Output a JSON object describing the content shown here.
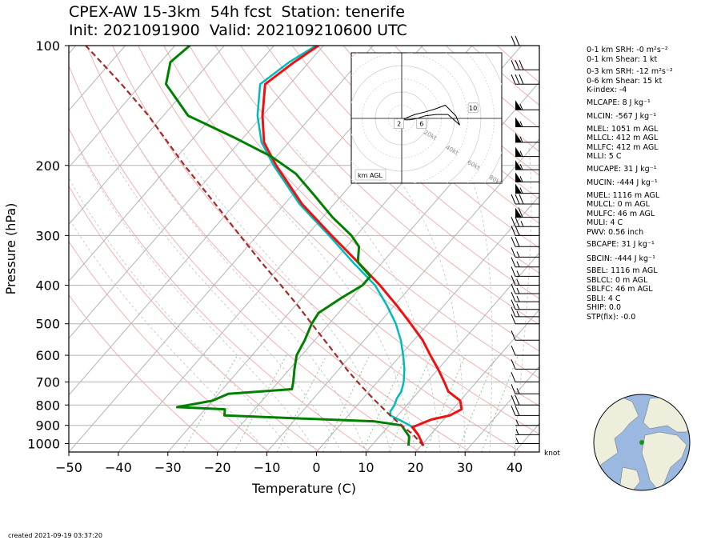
{
  "header": {
    "line1": "CPEX-AW 15-3km  54h fcst  Station: tenerife",
    "line2": "Init: 2021091900  Valid: 202109210600 UTC"
  },
  "footer": "created 2021-09-19 03:37:20",
  "stats": [
    "0-1 km SRH: -0 m²s⁻²",
    "0-1 km Shear: 1 kt",
    "0-3 km SRH: -12 m²s⁻²",
    "0-6 km Shear: 15 kt",
    "K-index: -4",
    "MLCAPE: 8 J kg⁻¹",
    "MLCIN: -567 J kg⁻¹",
    "MLEL: 1051 m AGL",
    "MLLCL: 412 m AGL",
    "MLLFC: 412 m AGL",
    "MLLI: 5 C",
    "MUCAPE: 31 J kg⁻¹",
    "MUCIN: -444 J kg⁻¹",
    "MUEL: 1116 m AGL",
    "MULCL: 0 m AGL",
    "MULFC: 46 m AGL",
    "MULI: 4 C",
    "PWV: 0.56 inch",
    "SBCAPE: 31 J kg⁻¹",
    "SBCIN: -444 J kg⁻¹",
    "SBEL: 1116 m AGL",
    "SBLCL: 0 m AGL",
    "SBLFC: 46 m AGL",
    "SBLI: 4 C",
    "SHIP: 0.0",
    "STP(fix): -0.0"
  ],
  "colors": {
    "temperature": "#ee1111",
    "dewpoint": "#008000",
    "virtual_temperature": "#00bbbb",
    "parcel": "#a52a2a",
    "dry_adiabat": "#f5b0b0",
    "moist_adiabat": "#c8c8c8",
    "mixing_ratio": "#88cc88",
    "isotherm": "#b4b4b4",
    "isobar": "#b4b4b4",
    "ocean": "#9ab8e0",
    "land": "#eeeedd"
  },
  "chart_data": {
    "type": "line",
    "xlabel": "Temperature (C)",
    "ylabel": "Pressure (hPa)",
    "xlim": [
      -50,
      45
    ],
    "ylim": [
      1050,
      100
    ],
    "x_ticks": [
      -50,
      -40,
      -30,
      -20,
      -10,
      0,
      10,
      20,
      30,
      40
    ],
    "y_ticks": [
      1000,
      900,
      800,
      700,
      600,
      500,
      400,
      300,
      200,
      100
    ],
    "y_scale": "log",
    "grid": true,
    "annotation_surface": "61",
    "wind_unit": "knot",
    "series": [
      {
        "role": "temperature",
        "points": [
          [
            1013,
            20.5
          ],
          [
            950,
            17.5
          ],
          [
            910,
            15.0
          ],
          [
            870,
            17.5
          ],
          [
            850,
            20.5
          ],
          [
            820,
            21.8
          ],
          [
            780,
            20.0
          ],
          [
            740,
            16.0
          ],
          [
            700,
            13.5
          ],
          [
            650,
            10.0
          ],
          [
            600,
            6.0
          ],
          [
            550,
            1.8
          ],
          [
            500,
            -3.5
          ],
          [
            450,
            -9.5
          ],
          [
            400,
            -16.5
          ],
          [
            350,
            -25.0
          ],
          [
            300,
            -35.0
          ],
          [
            250,
            -46.5
          ],
          [
            200,
            -58.5
          ],
          [
            175,
            -65.0
          ],
          [
            150,
            -70.0
          ],
          [
            125,
            -75.0
          ],
          [
            110,
            -73.0
          ],
          [
            100,
            -71.0
          ]
        ]
      },
      {
        "role": "dewpoint",
        "points": [
          [
            1013,
            17.5
          ],
          [
            960,
            16.0
          ],
          [
            900,
            12.5
          ],
          [
            880,
            6.5
          ],
          [
            850,
            -25.0
          ],
          [
            820,
            -26.0
          ],
          [
            810,
            -36.0
          ],
          [
            780,
            -30.0
          ],
          [
            750,
            -28.0
          ],
          [
            730,
            -16.0
          ],
          [
            700,
            -17.0
          ],
          [
            650,
            -19.0
          ],
          [
            600,
            -21.0
          ],
          [
            550,
            -22.0
          ],
          [
            500,
            -23.5
          ],
          [
            470,
            -24.0
          ],
          [
            430,
            -22.0
          ],
          [
            400,
            -20.0
          ],
          [
            380,
            -20.0
          ],
          [
            350,
            -25.0
          ],
          [
            320,
            -27.5
          ],
          [
            300,
            -31.0
          ],
          [
            270,
            -38.0
          ],
          [
            240,
            -45.0
          ],
          [
            210,
            -53.0
          ],
          [
            190,
            -61.0
          ],
          [
            170,
            -72.0
          ],
          [
            150,
            -85.0
          ],
          [
            125,
            -95.0
          ],
          [
            110,
            -98.0
          ],
          [
            100,
            -97.0
          ]
        ]
      },
      {
        "role": "virtual_temperature",
        "points": [
          [
            1013,
            20.5
          ],
          [
            950,
            17.5
          ],
          [
            910,
            15.2
          ],
          [
            880,
            12.0
          ],
          [
            850,
            8.5
          ],
          [
            830,
            7.8
          ],
          [
            800,
            7.5
          ],
          [
            770,
            6.8
          ],
          [
            740,
            6.5
          ],
          [
            700,
            5.3
          ],
          [
            650,
            3.2
          ],
          [
            600,
            0.5
          ],
          [
            550,
            -2.6
          ],
          [
            500,
            -6.5
          ],
          [
            450,
            -11.5
          ],
          [
            400,
            -17.5
          ],
          [
            350,
            -26.0
          ],
          [
            300,
            -35.5
          ],
          [
            250,
            -47.0
          ],
          [
            200,
            -59.0
          ],
          [
            175,
            -65.5
          ],
          [
            150,
            -71.0
          ],
          [
            125,
            -76.0
          ],
          [
            110,
            -74.0
          ],
          [
            100,
            -71.5
          ]
        ]
      },
      {
        "role": "parcel",
        "points": [
          [
            1013,
            20.5
          ],
          [
            950,
            16.5
          ],
          [
            900,
            12.5
          ],
          [
            850,
            8.5
          ],
          [
            800,
            4.5
          ],
          [
            750,
            0.3
          ],
          [
            700,
            -4.0
          ],
          [
            650,
            -8.5
          ],
          [
            600,
            -13.0
          ],
          [
            550,
            -18.0
          ],
          [
            500,
            -23.5
          ],
          [
            450,
            -29.5
          ],
          [
            400,
            -36.5
          ],
          [
            350,
            -44.5
          ],
          [
            300,
            -53.5
          ],
          [
            250,
            -64.0
          ],
          [
            200,
            -77.0
          ],
          [
            150,
            -93.0
          ],
          [
            125,
            -104.0
          ],
          [
            110,
            -112.0
          ],
          [
            100,
            -118.0
          ]
        ]
      }
    ],
    "wind_barbs": [
      {
        "p": 1000,
        "speed": 5
      },
      {
        "p": 950,
        "speed": 5
      },
      {
        "p": 900,
        "speed": 5
      },
      {
        "p": 850,
        "speed": 20
      },
      {
        "p": 800,
        "speed": 20
      },
      {
        "p": 750,
        "speed": 15
      },
      {
        "p": 700,
        "speed": 10
      },
      {
        "p": 650,
        "speed": 10
      },
      {
        "p": 600,
        "speed": 10
      },
      {
        "p": 550,
        "speed": 10
      },
      {
        "p": 500,
        "speed": 10
      },
      {
        "p": 480,
        "speed": 15
      },
      {
        "p": 460,
        "speed": 15
      },
      {
        "p": 440,
        "speed": 15
      },
      {
        "p": 420,
        "speed": 15
      },
      {
        "p": 400,
        "speed": 15
      },
      {
        "p": 380,
        "speed": 15
      },
      {
        "p": 360,
        "speed": 15
      },
      {
        "p": 340,
        "speed": 15
      },
      {
        "p": 320,
        "speed": 20
      },
      {
        "p": 300,
        "speed": 20
      },
      {
        "p": 285,
        "speed": 25
      },
      {
        "p": 270,
        "speed": 60
      },
      {
        "p": 250,
        "speed": 30
      },
      {
        "p": 235,
        "speed": 55
      },
      {
        "p": 220,
        "speed": 55
      },
      {
        "p": 205,
        "speed": 55
      },
      {
        "p": 190,
        "speed": 55
      },
      {
        "p": 175,
        "speed": 55
      },
      {
        "p": 160,
        "speed": 55
      },
      {
        "p": 145,
        "speed": 55
      },
      {
        "p": 125,
        "speed": 30
      },
      {
        "p": 115,
        "speed": 30
      },
      {
        "p": 100,
        "speed": 20
      }
    ],
    "hodograph": {
      "ring_labels": [
        "20kt",
        "40kt",
        "60kt",
        "80kt"
      ],
      "height_labels": [
        "2",
        "6",
        "10"
      ],
      "legend": "km AGL",
      "points": [
        [
          -3,
          0
        ],
        [
          -5,
          -1
        ],
        [
          1,
          -3
        ],
        [
          -1,
          -2
        ],
        [
          5,
          1
        ],
        [
          10,
          3
        ],
        [
          18,
          5
        ],
        [
          25,
          7
        ],
        [
          33,
          10
        ],
        [
          37,
          6
        ],
        [
          41,
          2
        ],
        [
          44,
          -5
        ],
        [
          35,
          3
        ],
        [
          26,
          3
        ],
        [
          18,
          2
        ],
        [
          12,
          0
        ],
        [
          6,
          -1
        ],
        [
          2,
          -1
        ]
      ]
    },
    "inset_map": {
      "station_lon": -16.5,
      "station_lat": 28.3
    }
  }
}
